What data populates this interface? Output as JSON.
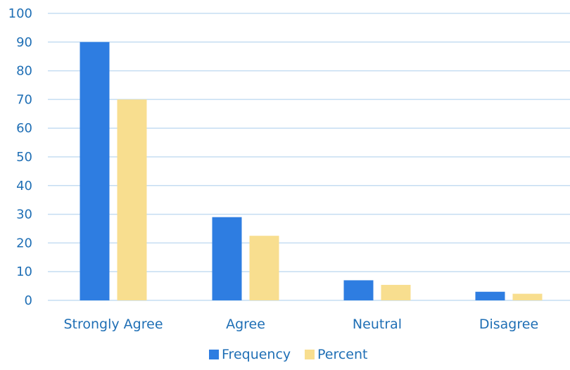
{
  "chart_data": {
    "type": "bar",
    "title": "",
    "xlabel": "",
    "ylabel": "",
    "categories": [
      "Strongly Agree",
      "Agree",
      "Neutral",
      "Disagree"
    ],
    "series": [
      {
        "name": "Frequency",
        "values": [
          90,
          29,
          7,
          3
        ],
        "color": "#2E7DE1"
      },
      {
        "name": "Percent",
        "values": [
          70,
          22.5,
          5.4,
          2.3
        ],
        "color": "#F8DE8F"
      }
    ],
    "ylim": [
      0,
      100
    ],
    "yticks": [
      0,
      10,
      20,
      30,
      40,
      50,
      60,
      70,
      80,
      90,
      100
    ],
    "grid": true,
    "legend_position": "bottom",
    "colors": {
      "tick_text": "#1F6FB5",
      "gridline": "#C5DDF2"
    }
  }
}
